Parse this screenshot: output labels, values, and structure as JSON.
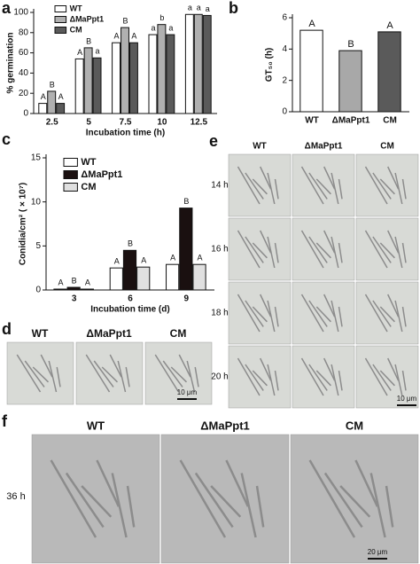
{
  "chart_data": [
    {
      "type": "bar",
      "panel_label": "a",
      "ylabel": "% germination",
      "xlabel": "Incubation time (h)",
      "categories": [
        "2.5",
        "5",
        "7.5",
        "10",
        "12.5"
      ],
      "series": [
        {
          "name": "WT",
          "color": "#ffffff",
          "values": [
            10,
            54,
            70,
            78,
            98
          ],
          "letters": [
            "A",
            "A",
            "A",
            "a",
            "a"
          ]
        },
        {
          "name": "ΔMaPpt1",
          "color": "#b0b0b0",
          "values": [
            22,
            65,
            85,
            88,
            98
          ],
          "letters": [
            "B",
            "B",
            "B",
            "b",
            "a"
          ]
        },
        {
          "name": "CM",
          "color": "#5a5a5a",
          "values": [
            10,
            55,
            70,
            78,
            97
          ],
          "letters": [
            "A",
            "a",
            "A",
            "a",
            "a"
          ]
        }
      ],
      "ylim": [
        0,
        100
      ],
      "yticks": [
        0,
        20,
        40,
        60,
        80,
        100
      ],
      "legend": "upper left"
    },
    {
      "type": "bar",
      "panel_label": "b",
      "ylabel": "GT₅₀ (h)",
      "categories": [
        "WT",
        "ΔMaPpt1",
        "CM"
      ],
      "values": [
        5.2,
        3.9,
        5.1
      ],
      "colors": [
        "#ffffff",
        "#a8a8a8",
        "#5a5a5a"
      ],
      "letters": [
        "A",
        "B",
        "A"
      ],
      "ylim": [
        0,
        6
      ],
      "yticks": [
        0,
        2,
        4,
        6
      ]
    },
    {
      "type": "bar",
      "panel_label": "c",
      "ylabel": "Conidia/cm² ( × 10⁷)",
      "xlabel": "Incubation time (d)",
      "categories": [
        "3",
        "6",
        "9"
      ],
      "series": [
        {
          "name": "WT",
          "color": "#ffffff",
          "values": [
            0.1,
            2.5,
            2.9
          ],
          "letters": [
            "A",
            "A",
            "A"
          ]
        },
        {
          "name": "ΔMaPpt1",
          "color": "#1a1010",
          "values": [
            0.3,
            4.5,
            9.3
          ],
          "letters": [
            "B",
            "B",
            "B"
          ]
        },
        {
          "name": "CM",
          "color": "#e0e0e0",
          "values": [
            0.1,
            2.6,
            2.9
          ],
          "letters": [
            "A",
            "A",
            "A"
          ]
        }
      ],
      "ylim": [
        0,
        15
      ],
      "yticks": [
        0,
        5,
        10,
        15
      ],
      "legend": "upper left"
    }
  ],
  "panels": {
    "d": {
      "label": "d",
      "columns": [
        "WT",
        "ΔMaPpt1",
        "CM"
      ],
      "scale": "10 μm"
    },
    "e": {
      "label": "e",
      "columns": [
        "WT",
        "ΔMaPpt1",
        "CM"
      ],
      "rows": [
        "14 h",
        "16 h",
        "18 h",
        "20 h"
      ],
      "scale": "10 μm"
    },
    "f": {
      "label": "f",
      "columns": [
        "WT",
        "ΔMaPpt1",
        "CM"
      ],
      "rows": [
        "36 h"
      ],
      "scale": "20 μm"
    }
  }
}
